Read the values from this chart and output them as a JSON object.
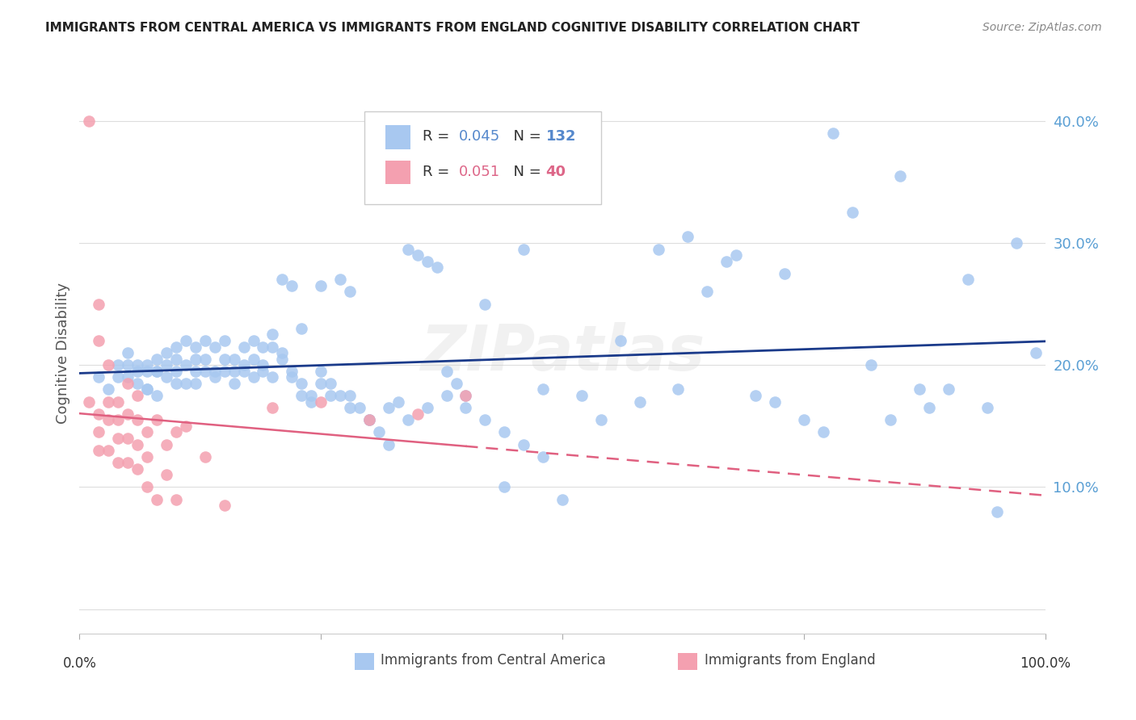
{
  "title": "IMMIGRANTS FROM CENTRAL AMERICA VS IMMIGRANTS FROM ENGLAND COGNITIVE DISABILITY CORRELATION CHART",
  "source": "Source: ZipAtlas.com",
  "ylabel": "Cognitive Disability",
  "yticks": [
    0.0,
    0.1,
    0.2,
    0.3,
    0.4
  ],
  "ytick_labels": [
    "",
    "10.0%",
    "20.0%",
    "30.0%",
    "40.0%"
  ],
  "xlim": [
    0.0,
    1.0
  ],
  "ylim": [
    -0.02,
    0.44
  ],
  "background_color": "#ffffff",
  "grid_color": "#dddddd",
  "watermark": "ZIPatlas",
  "blue_color": "#a8c8f0",
  "pink_color": "#f4a0b0",
  "blue_line_color": "#1a3a8a",
  "pink_line_color": "#e06080",
  "blue_r": 0.045,
  "blue_n": 132,
  "pink_r": 0.051,
  "pink_n": 40,
  "legend_label_blue": "Immigrants from Central America",
  "legend_label_pink": "Immigrants from England",
  "blue_scatter_x": [
    0.02,
    0.03,
    0.04,
    0.05,
    0.05,
    0.06,
    0.06,
    0.07,
    0.07,
    0.07,
    0.08,
    0.08,
    0.08,
    0.09,
    0.09,
    0.1,
    0.1,
    0.1,
    0.11,
    0.11,
    0.12,
    0.12,
    0.12,
    0.13,
    0.13,
    0.14,
    0.14,
    0.15,
    0.15,
    0.16,
    0.16,
    0.17,
    0.17,
    0.18,
    0.18,
    0.19,
    0.19,
    0.2,
    0.2,
    0.21,
    0.21,
    0.22,
    0.22,
    0.23,
    0.23,
    0.24,
    0.25,
    0.25,
    0.26,
    0.27,
    0.28,
    0.28,
    0.29,
    0.3,
    0.31,
    0.32,
    0.33,
    0.34,
    0.35,
    0.36,
    0.37,
    0.38,
    0.39,
    0.4,
    0.42,
    0.44,
    0.46,
    0.48,
    0.5,
    0.52,
    0.54,
    0.56,
    0.58,
    0.6,
    0.62,
    0.63,
    0.65,
    0.67,
    0.68,
    0.7,
    0.72,
    0.73,
    0.75,
    0.77,
    0.78,
    0.8,
    0.82,
    0.84,
    0.85,
    0.87,
    0.88,
    0.9,
    0.92,
    0.94,
    0.95,
    0.97,
    0.99,
    0.04,
    0.05,
    0.06,
    0.07,
    0.08,
    0.09,
    0.1,
    0.11,
    0.12,
    0.13,
    0.14,
    0.15,
    0.16,
    0.17,
    0.18,
    0.19,
    0.2,
    0.21,
    0.22,
    0.23,
    0.24,
    0.25,
    0.26,
    0.27,
    0.28,
    0.3,
    0.32,
    0.34,
    0.36,
    0.38,
    0.4,
    0.42,
    0.44,
    0.46,
    0.48
  ],
  "blue_scatter_y": [
    0.19,
    0.18,
    0.2,
    0.2,
    0.19,
    0.2,
    0.185,
    0.2,
    0.195,
    0.18,
    0.205,
    0.195,
    0.175,
    0.21,
    0.19,
    0.215,
    0.205,
    0.185,
    0.22,
    0.2,
    0.215,
    0.205,
    0.185,
    0.22,
    0.195,
    0.215,
    0.19,
    0.22,
    0.195,
    0.205,
    0.185,
    0.215,
    0.2,
    0.22,
    0.19,
    0.215,
    0.2,
    0.225,
    0.215,
    0.27,
    0.21,
    0.265,
    0.195,
    0.23,
    0.185,
    0.17,
    0.265,
    0.195,
    0.175,
    0.27,
    0.26,
    0.175,
    0.165,
    0.155,
    0.145,
    0.135,
    0.17,
    0.295,
    0.29,
    0.285,
    0.28,
    0.195,
    0.185,
    0.175,
    0.25,
    0.1,
    0.295,
    0.18,
    0.09,
    0.175,
    0.155,
    0.22,
    0.17,
    0.295,
    0.18,
    0.305,
    0.26,
    0.285,
    0.29,
    0.175,
    0.17,
    0.275,
    0.155,
    0.145,
    0.39,
    0.325,
    0.2,
    0.155,
    0.355,
    0.18,
    0.165,
    0.18,
    0.27,
    0.165,
    0.08,
    0.3,
    0.21,
    0.19,
    0.21,
    0.195,
    0.18,
    0.195,
    0.2,
    0.195,
    0.185,
    0.195,
    0.205,
    0.195,
    0.205,
    0.195,
    0.195,
    0.205,
    0.195,
    0.19,
    0.205,
    0.19,
    0.175,
    0.175,
    0.185,
    0.185,
    0.175,
    0.165,
    0.155,
    0.165,
    0.155,
    0.165,
    0.175,
    0.165,
    0.155,
    0.145,
    0.135,
    0.125
  ],
  "pink_scatter_x": [
    0.01,
    0.01,
    0.02,
    0.02,
    0.02,
    0.02,
    0.02,
    0.03,
    0.03,
    0.03,
    0.03,
    0.04,
    0.04,
    0.04,
    0.04,
    0.05,
    0.05,
    0.05,
    0.05,
    0.06,
    0.06,
    0.06,
    0.06,
    0.07,
    0.07,
    0.07,
    0.08,
    0.08,
    0.09,
    0.09,
    0.1,
    0.1,
    0.11,
    0.13,
    0.15,
    0.2,
    0.25,
    0.3,
    0.35,
    0.4
  ],
  "pink_scatter_y": [
    0.4,
    0.17,
    0.25,
    0.22,
    0.16,
    0.145,
    0.13,
    0.2,
    0.17,
    0.155,
    0.13,
    0.17,
    0.155,
    0.14,
    0.12,
    0.185,
    0.16,
    0.14,
    0.12,
    0.175,
    0.155,
    0.135,
    0.115,
    0.145,
    0.125,
    0.1,
    0.155,
    0.09,
    0.135,
    0.11,
    0.145,
    0.09,
    0.15,
    0.125,
    0.085,
    0.165,
    0.17,
    0.155,
    0.16,
    0.175
  ]
}
